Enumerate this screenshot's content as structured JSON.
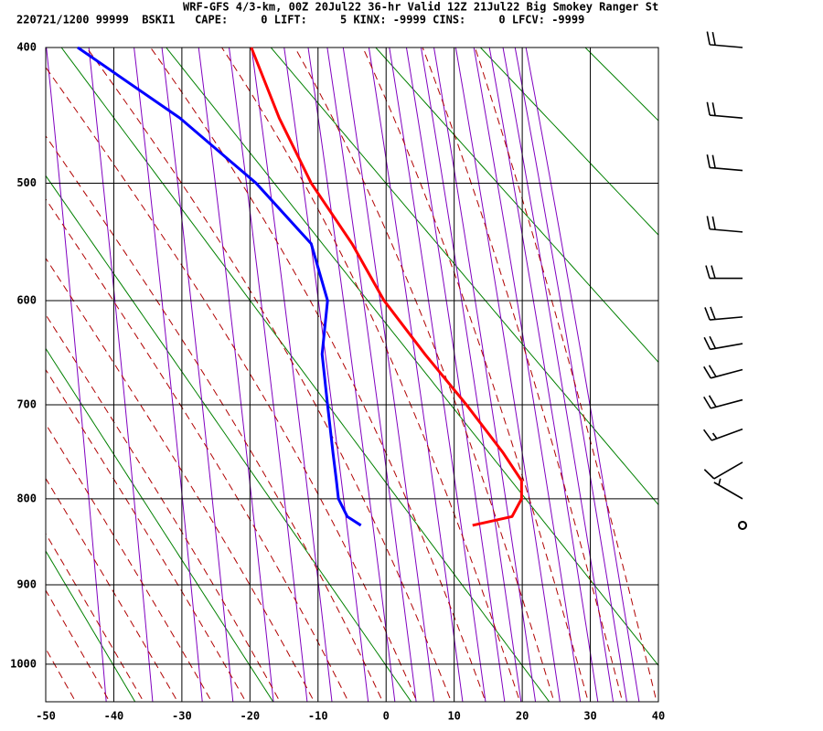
{
  "header": {
    "line1": "WRF-GFS 4/3-km, 00Z 20Jul22 36-hr Valid 12Z 21Jul22 Big Smokey Ranger St",
    "line2": "220721/1200 99999  BSKI1   CAPE:     0 LIFT:     5 KINX: -9999 CINS:     0 LFCV: -9999"
  },
  "chart_data": {
    "type": "skewt",
    "y": [
      400,
      450,
      500,
      550,
      600,
      650,
      700,
      750,
      780,
      800,
      820,
      830
    ],
    "series": [
      {
        "color": "#ff0000",
        "values": [
          -19.8,
          -15.7,
          -11.0,
          -5.0,
          -0.3,
          5.7,
          11.8,
          17.2,
          19.9,
          19.9,
          18.5,
          12.7
        ]
      },
      {
        "color": "#0000ff",
        "values": [
          -45.3,
          -30.3,
          -19.1,
          -11.0,
          -8.6,
          -9.4,
          -8.6,
          -7.8,
          -7.3,
          -7.0,
          -5.7,
          -3.7
        ]
      }
    ],
    "xlim": [
      -50,
      40
    ],
    "xticks": [
      -50,
      -40,
      -30,
      -20,
      -10,
      0,
      10,
      20,
      30,
      40
    ],
    "ylim": [
      400,
      1050
    ],
    "yticks": [
      400,
      500,
      600,
      700,
      800,
      900,
      1000
    ],
    "grid": true,
    "winds": {
      "pressure": [
        400,
        450,
        490,
        540,
        580,
        615,
        640,
        665,
        695,
        725,
        760,
        800,
        830
      ],
      "speed": [
        20,
        20,
        20,
        20,
        20,
        20,
        20,
        20,
        20,
        15,
        10,
        5,
        0
      ],
      "direction": [
        275,
        275,
        275,
        275,
        270,
        265,
        260,
        255,
        255,
        250,
        240,
        300,
        0
      ]
    }
  }
}
